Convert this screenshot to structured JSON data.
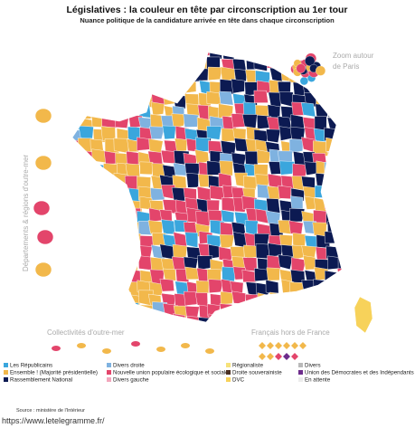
{
  "title": "Législatives : la couleur en tête par circonscription au 1er tour",
  "subtitle": "Nuance politique de la candidature arrivée en tête dans chaque circonscription",
  "map_labels": {
    "paris_zoom": [
      "Zoom autour",
      "de Paris"
    ],
    "drom": "Départements & régions d'outre-mer",
    "com": "Collectivités d'outre-mer",
    "abroad": "Français hors de France"
  },
  "legend": [
    {
      "name": "Les Républicains",
      "color": "#3aa6dd"
    },
    {
      "name": "Ensemble ! (Majorité présidentielle)",
      "color": "#f2b84b"
    },
    {
      "name": "Rassemblement National",
      "color": "#0c1a52"
    },
    {
      "name": "Divers droite",
      "color": "#7fb2e0"
    },
    {
      "name": "Nouvelle union populaire écologique et sociale",
      "color": "#e3456b"
    },
    {
      "name": "Divers gauche",
      "color": "#f3a6bc"
    },
    {
      "name": "Régionaliste",
      "color": "#f6e27a"
    },
    {
      "name": "Droite souverainiste",
      "color": "#4a2f22"
    },
    {
      "name": "DVC",
      "color": "#f7d25a"
    },
    {
      "name": "Divers",
      "color": "#b9b9b9"
    },
    {
      "name": "Union des Démocrates et des Indépendants",
      "color": "#6d2c8c"
    },
    {
      "name": "En attente",
      "color": "#ececec"
    }
  ],
  "source": "Source : ministère de l'Intérieur",
  "url": "https://www.letelegramme.fr/"
}
